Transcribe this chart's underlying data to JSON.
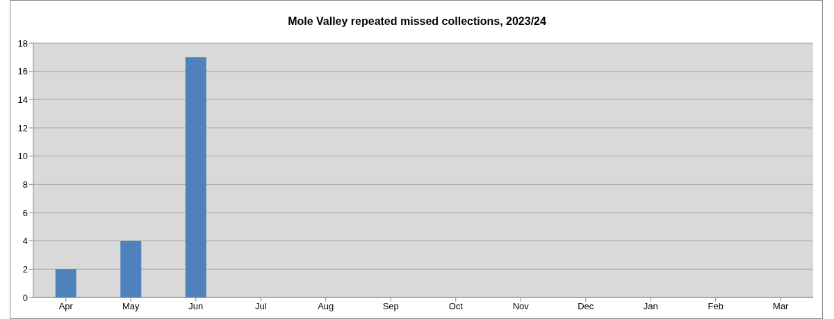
{
  "chart_data": {
    "type": "bar",
    "title": "Mole Valley repeated missed collections, 2023/24",
    "categories": [
      "Apr",
      "May",
      "Jun",
      "Jul",
      "Aug",
      "Sep",
      "Oct",
      "Nov",
      "Dec",
      "Jan",
      "Feb",
      "Mar"
    ],
    "values": [
      2,
      4,
      17,
      null,
      null,
      null,
      null,
      null,
      null,
      null,
      null,
      null
    ],
    "color": "#4f81bd",
    "ylim": [
      0,
      18
    ],
    "yticks": [
      0,
      2,
      4,
      6,
      8,
      10,
      12,
      14,
      16,
      18
    ],
    "grid": "y"
  }
}
